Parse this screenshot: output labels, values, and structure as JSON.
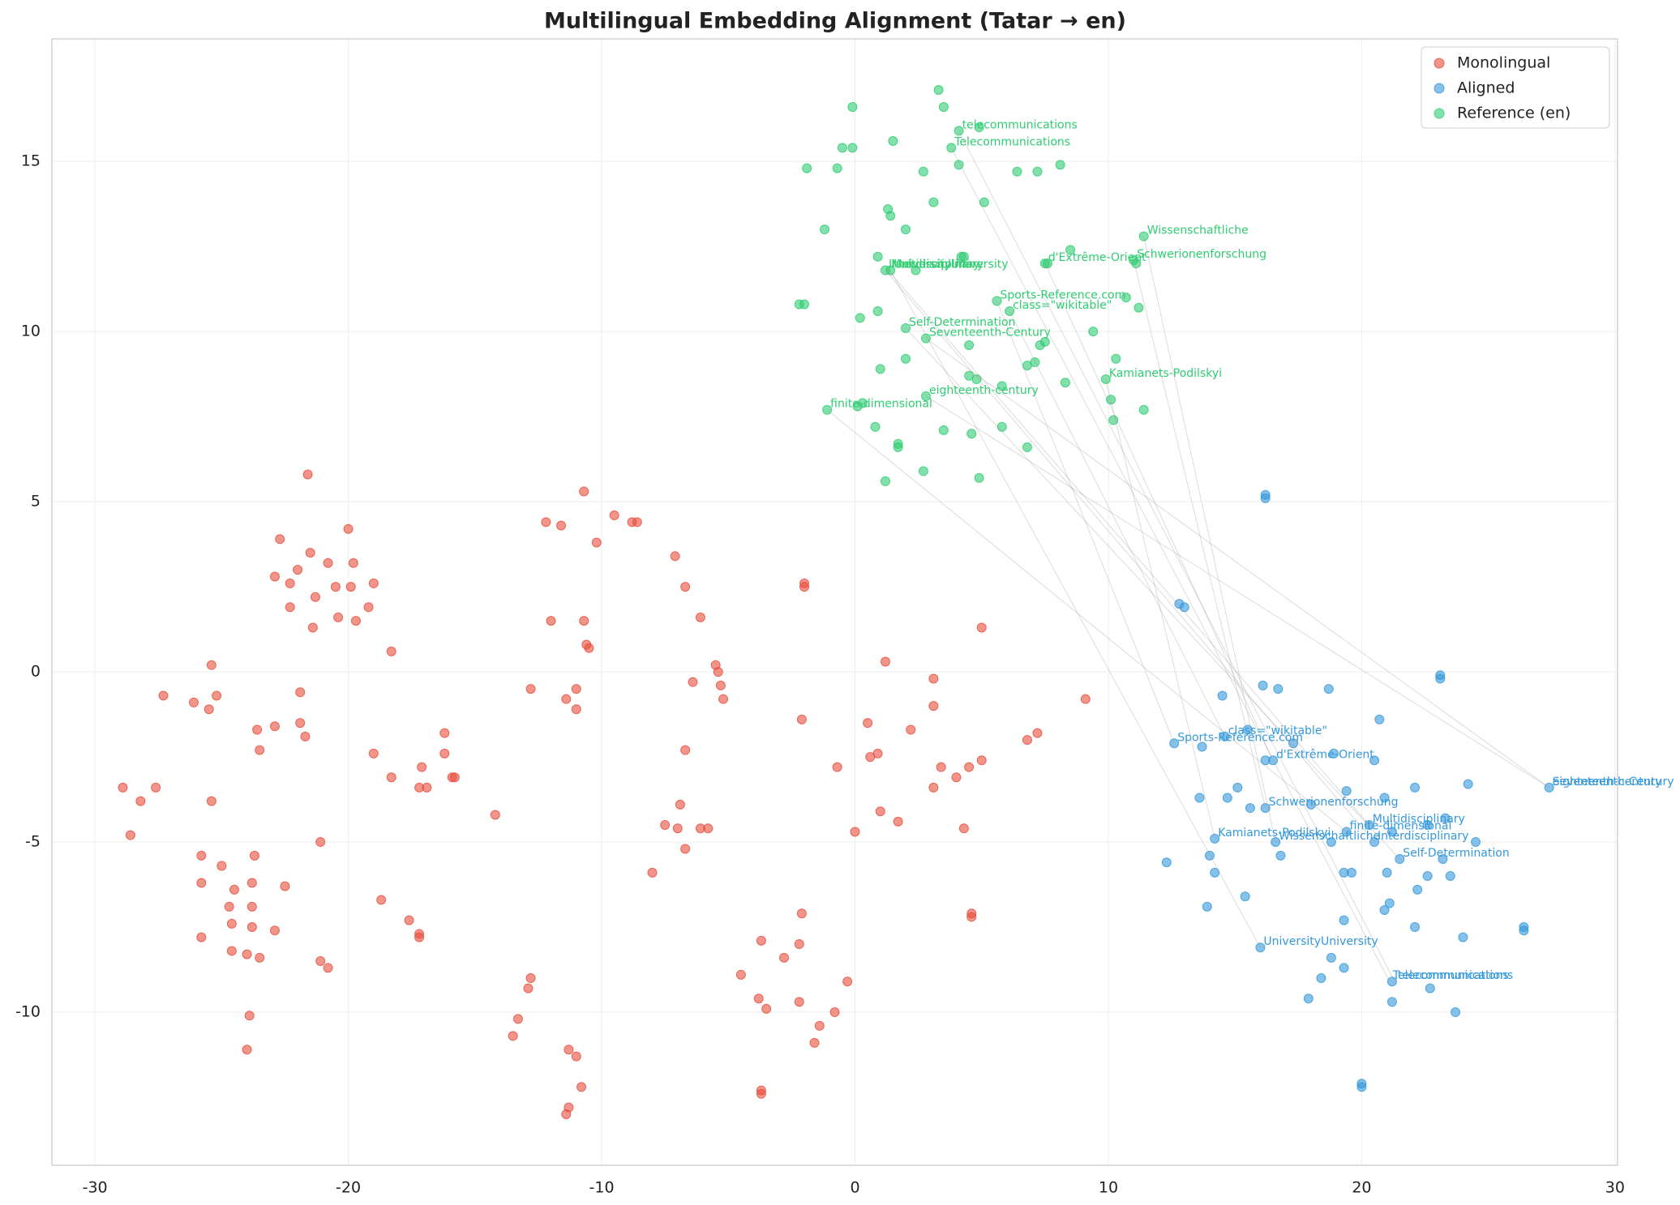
{
  "chart_data": {
    "type": "scatter",
    "title": "Multilingual Embedding Alignment (Tatar → en)",
    "xlim": [
      -31.7,
      30.1
    ],
    "ylim": [
      -14.5,
      18.6
    ],
    "xticks": [
      -30,
      -20,
      -10,
      0,
      10,
      20,
      30
    ],
    "yticks": [
      -10,
      -5,
      0,
      5,
      10,
      15
    ],
    "grid": true,
    "legend": "upper right",
    "series": [
      {
        "name": "Monolingual",
        "color": "#e74c3c",
        "x": [
          -21.6,
          -22.7,
          -20.0,
          -21.5,
          -22.0,
          -20.8,
          -19.8,
          -22.9,
          -22.3,
          -20.5,
          -19.9,
          -19.0,
          -21.3,
          -22.3,
          -19.2,
          -20.4,
          -19.7,
          -21.4,
          -18.3,
          -25.4,
          -27.3,
          -25.2,
          -26.1,
          -25.5,
          -21.9,
          -21.9,
          -22.9,
          -23.6,
          -21.7,
          -16.2,
          -23.5,
          -16.2,
          -19.0,
          -17.1,
          -18.3,
          -15.8,
          -15.9,
          -28.9,
          -27.6,
          -17.2,
          -16.9,
          -28.2,
          -25.4,
          -14.2,
          -28.6,
          -21.1,
          -23.7,
          -25.8,
          -25.0,
          -25.8,
          -23.8,
          -24.5,
          -22.5,
          -18.7,
          -24.7,
          -23.8,
          -17.6,
          -24.6,
          -23.8,
          -22.9,
          -25.8,
          -17.2,
          -17.2,
          -24.6,
          -24.0,
          -23.5,
          -21.1,
          -20.8,
          -23.9,
          -24.0,
          -10.7,
          -9.5,
          -12.2,
          -11.6,
          -8.8,
          -8.6,
          -10.2,
          -7.1,
          -6.7,
          -2.0,
          -2.0,
          -12.0,
          -10.7,
          -6.1,
          -10.6,
          -10.5,
          5.0,
          -5.5,
          1.2,
          -5.4,
          3.1,
          -6.4,
          -5.3,
          -12.8,
          -11.0,
          -5.2,
          9.1,
          -11.4,
          3.1,
          -11.0,
          -2.1,
          0.5,
          2.2,
          7.2,
          6.8,
          -6.7,
          0.9,
          0.6,
          5.0,
          4.5,
          3.4,
          -0.7,
          4.0,
          3.1,
          -6.9,
          1.0,
          1.7,
          -7.5,
          -7.0,
          -6.1,
          -5.8,
          4.3,
          0.0,
          -6.7,
          -8.0,
          4.6,
          4.6,
          -2.1,
          -3.7,
          -2.2,
          -2.8,
          -4.5,
          -12.8,
          -0.3,
          -12.9,
          -3.8,
          -2.2,
          -3.5,
          -0.8,
          -13.3,
          -1.4,
          -13.5,
          -11.3,
          -11.0,
          -1.6,
          -10.8,
          -3.7,
          -3.7,
          -11.3,
          -11.4
        ],
        "y": [
          5.8,
          3.9,
          4.2,
          3.5,
          3.0,
          3.2,
          3.2,
          2.8,
          2.6,
          2.5,
          2.5,
          2.6,
          2.2,
          1.9,
          1.9,
          1.6,
          1.5,
          1.3,
          0.6,
          0.2,
          -0.7,
          -0.7,
          -0.9,
          -1.1,
          -0.6,
          -1.5,
          -1.6,
          -1.7,
          -1.9,
          -1.8,
          -2.3,
          -2.4,
          -2.4,
          -2.8,
          -3.1,
          -3.1,
          -3.1,
          -3.4,
          -3.4,
          -3.4,
          -3.4,
          -3.8,
          -3.8,
          -4.2,
          -4.8,
          -5.0,
          -5.4,
          -5.4,
          -5.7,
          -6.2,
          -6.2,
          -6.4,
          -6.3,
          -6.7,
          -6.9,
          -6.9,
          -7.3,
          -7.4,
          -7.5,
          -7.6,
          -7.8,
          -7.7,
          -7.8,
          -8.2,
          -8.3,
          -8.4,
          -8.5,
          -8.7,
          -10.1,
          -11.1,
          5.3,
          4.6,
          4.4,
          4.3,
          4.4,
          4.4,
          3.8,
          3.4,
          2.5,
          2.6,
          2.5,
          1.5,
          1.5,
          1.6,
          0.8,
          0.7,
          1.3,
          0.2,
          0.3,
          0.0,
          -0.2,
          -0.3,
          -0.4,
          -0.5,
          -0.5,
          -0.8,
          -0.8,
          -0.8,
          -1.0,
          -1.1,
          -1.4,
          -1.5,
          -1.7,
          -1.8,
          -2.0,
          -2.3,
          -2.4,
          -2.5,
          -2.6,
          -2.8,
          -2.8,
          -2.8,
          -3.1,
          -3.4,
          -3.9,
          -4.1,
          -4.4,
          -4.5,
          -4.6,
          -4.6,
          -4.6,
          -4.6,
          -4.7,
          -5.2,
          -5.9,
          -7.1,
          -7.2,
          -7.1,
          -7.9,
          -8.0,
          -8.4,
          -8.9,
          -9.0,
          -9.1,
          -9.3,
          -9.6,
          -9.7,
          -9.9,
          -10.0,
          -10.2,
          -10.4,
          -10.7,
          -11.1,
          -11.3,
          -10.9,
          -12.2,
          -12.3,
          -12.4,
          -12.8,
          -13.0
        ]
      },
      {
        "name": "Aligned",
        "color": "#3498db",
        "x": [
          16.2,
          16.2,
          12.8,
          13.0,
          23.1,
          23.1,
          16.1,
          16.7,
          18.7,
          14.5,
          20.7,
          15.5,
          14.6,
          17.3,
          13.7,
          12.6,
          18.9,
          16.2,
          16.5,
          20.5,
          15.1,
          22.1,
          24.2,
          27.4,
          19.4,
          13.6,
          14.7,
          20.9,
          15.6,
          16.2,
          18.0,
          23.3,
          20.3,
          22.6,
          19.4,
          21.2,
          14.2,
          16.6,
          18.8,
          20.5,
          24.5,
          14.0,
          16.8,
          21.5,
          23.2,
          14.2,
          19.3,
          19.6,
          21.0,
          22.6,
          23.5,
          12.3,
          22.2,
          15.4,
          21.1,
          13.9,
          20.9,
          19.3,
          22.1,
          26.4,
          26.4,
          24.0,
          16.0,
          18.8,
          19.3,
          18.4,
          21.2,
          22.7,
          17.9,
          21.2,
          23.7,
          20.0,
          20.0
        ],
        "y": [
          5.2,
          5.1,
          2.0,
          1.9,
          -0.1,
          -0.2,
          -0.4,
          -0.5,
          -0.5,
          -0.7,
          -1.4,
          -1.7,
          -1.9,
          -2.1,
          -2.2,
          -2.1,
          -2.4,
          -2.6,
          -2.6,
          -2.6,
          -3.4,
          -3.4,
          -3.3,
          -3.4,
          -3.5,
          -3.7,
          -3.7,
          -3.7,
          -4.0,
          -4.0,
          -3.9,
          -4.3,
          -4.5,
          -4.5,
          -4.7,
          -4.7,
          -4.9,
          -5.0,
          -5.0,
          -5.0,
          -5.0,
          -5.4,
          -5.4,
          -5.5,
          -5.5,
          -5.9,
          -5.9,
          -5.9,
          -5.9,
          -6.0,
          -6.0,
          -5.6,
          -6.4,
          -6.6,
          -6.8,
          -6.9,
          -7.0,
          -7.3,
          -7.5,
          -7.5,
          -7.6,
          -7.8,
          -8.1,
          -8.4,
          -8.7,
          -9.0,
          -9.1,
          -9.3,
          -9.6,
          -9.7,
          -10.0,
          -12.1,
          -12.2
        ]
      },
      {
        "name": "Reference (en)",
        "color": "#2ecc71",
        "x": [
          3.3,
          -0.1,
          3.5,
          4.9,
          4.1,
          -0.5,
          -0.1,
          1.5,
          3.8,
          4.1,
          -1.9,
          -0.7,
          2.7,
          6.4,
          7.2,
          8.1,
          3.1,
          5.1,
          1.3,
          1.4,
          -1.2,
          2.0,
          11.4,
          8.5,
          0.9,
          4.2,
          4.3,
          7.5,
          7.6,
          11.0,
          11.1,
          1.2,
          1.4,
          2.4,
          10.7,
          5.6,
          11.2,
          -2.2,
          -2.0,
          6.1,
          0.9,
          0.2,
          2.0,
          9.4,
          2.8,
          7.5,
          7.3,
          4.5,
          2.0,
          10.3,
          1.0,
          6.8,
          7.1,
          4.5,
          4.8,
          9.9,
          5.8,
          8.3,
          10.1,
          2.8,
          0.3,
          0.1,
          -1.1,
          11.4,
          10.2,
          5.8,
          0.8,
          3.5,
          4.6,
          1.7,
          1.7,
          6.8,
          2.7,
          4.9,
          1.2
        ],
        "y": [
          17.1,
          16.6,
          16.6,
          16.0,
          15.9,
          15.4,
          15.4,
          15.6,
          15.4,
          14.9,
          14.8,
          14.8,
          14.7,
          14.7,
          14.7,
          14.9,
          13.8,
          13.8,
          13.6,
          13.4,
          13.0,
          13.0,
          12.8,
          12.4,
          12.2,
          12.2,
          12.2,
          12.0,
          12.0,
          12.1,
          12.0,
          11.8,
          11.8,
          11.8,
          11.0,
          10.9,
          10.7,
          10.8,
          10.8,
          10.6,
          10.6,
          10.4,
          10.1,
          10.0,
          9.8,
          9.7,
          9.6,
          9.6,
          9.2,
          9.2,
          8.9,
          9.0,
          9.1,
          8.7,
          8.6,
          8.6,
          8.4,
          8.5,
          8.0,
          8.1,
          7.9,
          7.8,
          7.7,
          7.7,
          7.4,
          7.2,
          7.2,
          7.1,
          7.0,
          6.7,
          6.6,
          6.6,
          5.9,
          5.7,
          5.6
        ]
      }
    ],
    "annotations": [
      {
        "text": "telecommunications",
        "ref": [
          4.1,
          15.9
        ],
        "aligned": [
          21.3,
          -9.1
        ]
      },
      {
        "text": "Telecommunications",
        "ref": [
          3.8,
          15.4
        ],
        "aligned": [
          21.1,
          -9.1
        ]
      },
      {
        "text": "Wissenschaftliche",
        "ref": [
          11.4,
          12.8
        ],
        "aligned": [
          16.6,
          -5.0
        ]
      },
      {
        "text": "Schwerionenforschung",
        "ref": [
          11.0,
          12.1
        ],
        "aligned": [
          16.2,
          -4.0
        ]
      },
      {
        "text": "d'Extrême-Orient",
        "ref": [
          7.5,
          12.0
        ],
        "aligned": [
          16.5,
          -2.6
        ]
      },
      {
        "text": "Multidisciplinary",
        "ref": [
          1.3,
          11.8
        ],
        "aligned": [
          20.3,
          -4.5
        ]
      },
      {
        "text": "Interdisciplinary",
        "ref": [
          1.2,
          11.8
        ],
        "aligned": [
          20.5,
          -5.0
        ]
      },
      {
        "text": "UniversityUniversity",
        "ref": [
          1.4,
          11.8
        ],
        "aligned": [
          16.0,
          -8.1
        ]
      },
      {
        "text": "Sports-Reference.com",
        "ref": [
          5.6,
          10.9
        ],
        "aligned": [
          12.6,
          -2.1
        ]
      },
      {
        "text": "class=\"wikitable\"",
        "ref": [
          6.1,
          10.6
        ],
        "aligned": [
          14.6,
          -1.9
        ]
      },
      {
        "text": "Self-Determination",
        "ref": [
          2.0,
          10.1
        ],
        "aligned": [
          21.5,
          -5.5
        ]
      },
      {
        "text": "Seventeenth-Century",
        "ref": [
          2.8,
          9.8
        ],
        "aligned": [
          27.4,
          -3.4
        ]
      },
      {
        "text": "Kamianets-Podilskyi",
        "ref": [
          9.9,
          8.6
        ],
        "aligned": [
          14.2,
          -4.9
        ]
      },
      {
        "text": "eighteenth-century",
        "ref": [
          2.8,
          8.1
        ],
        "aligned": [
          27.4,
          -3.4
        ]
      },
      {
        "text": "finite-dimensional",
        "ref": [
          -1.1,
          7.7
        ],
        "aligned": [
          19.4,
          -4.7
        ]
      }
    ]
  }
}
